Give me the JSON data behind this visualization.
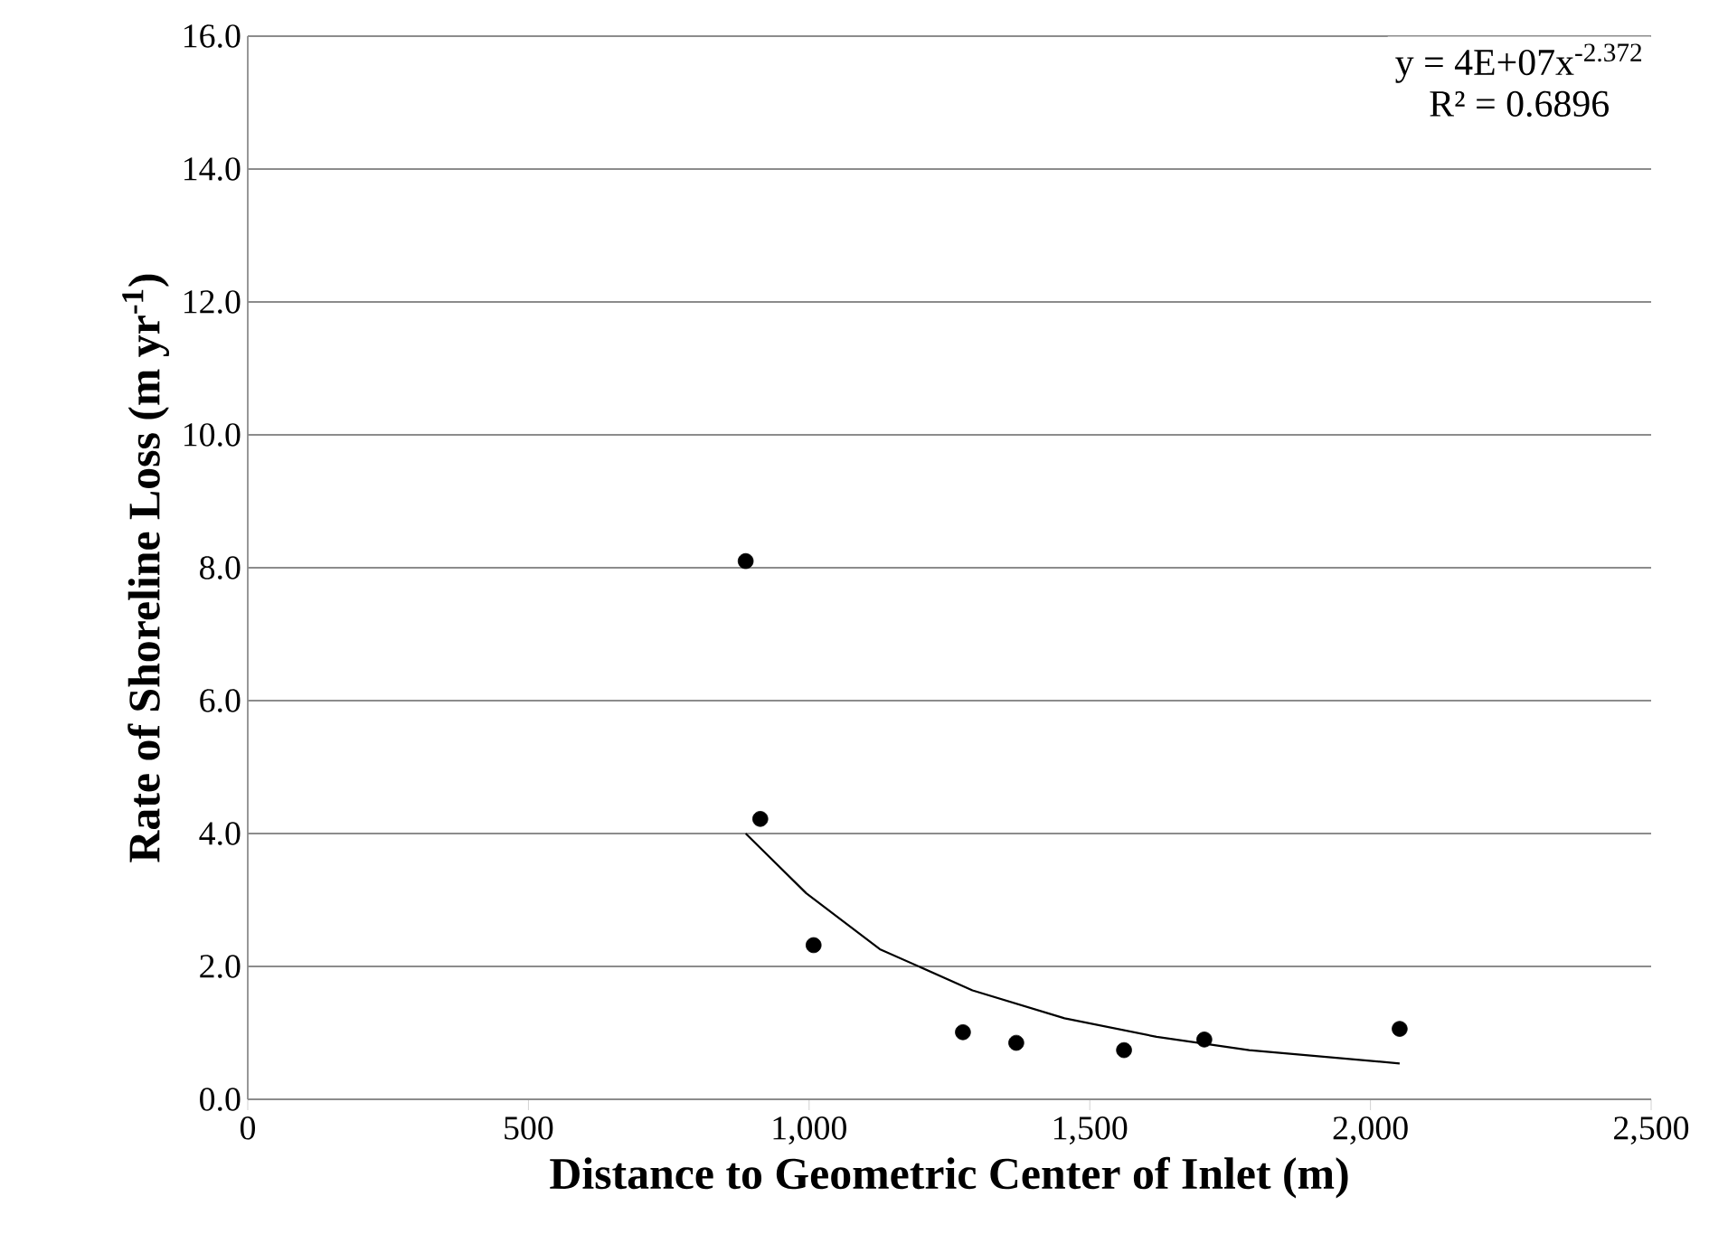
{
  "chart_data": {
    "type": "scatter",
    "xlabel": "Distance to Geometric Center of Inlet (m)",
    "ylabel": "Rate of Shoreline Loss (m yr$^{-1}$)",
    "annotations": [
      "y = 4E+07x$^{-2.372}$",
      "R² = 0.6896"
    ],
    "series": [
      {
        "color": "#000000",
        "marker": "circle",
        "x": [
          887,
          913,
          1008,
          1274,
          1369,
          1561,
          1704,
          2052
        ],
        "values": [
          8.1,
          4.22,
          2.32,
          1.01,
          0.85,
          0.74,
          0.9,
          1.06
        ]
      },
      {
        "type": "line",
        "color": "#000000",
        "line_style": "solid",
        "marker": "none",
        "x": [
          887,
          995,
          1126,
          1291,
          1455,
          1619,
          1784,
          2052
        ],
        "values": [
          4.0,
          3.1,
          2.26,
          1.64,
          1.22,
          0.94,
          0.74,
          0.54
        ]
      }
    ],
    "xlim": [
      0,
      2500
    ],
    "ylim": [
      0,
      16
    ],
    "grid": "y",
    "xticks": [
      0,
      500,
      {
        "value": 1000,
        "label": "1,000"
      },
      {
        "value": 1500,
        "label": "1,500"
      },
      {
        "value": 2000,
        "label": "2,000"
      },
      {
        "value": 2500,
        "label": "2,500"
      }
    ],
    "yticks": [
      {
        "value": 0,
        "label": "0.0"
      },
      {
        "value": 2,
        "label": "2.0"
      },
      {
        "value": 4,
        "label": "4.0"
      },
      {
        "value": 6,
        "label": "6.0"
      },
      {
        "value": 8,
        "label": "8.0"
      },
      {
        "value": 10,
        "label": "10.0"
      },
      {
        "value": 12,
        "label": "12.0"
      },
      {
        "value": 14,
        "label": "14.0"
      },
      {
        "value": 16,
        "label": "16.0"
      }
    ]
  }
}
